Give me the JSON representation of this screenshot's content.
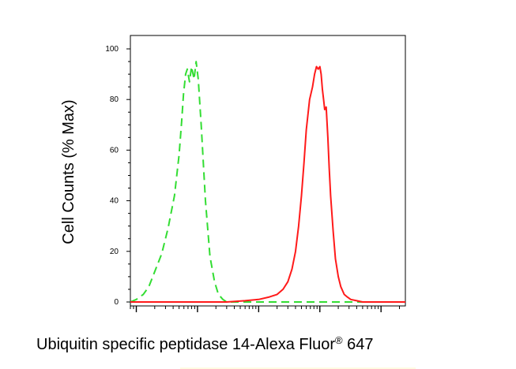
{
  "chart_data": {
    "type": "line",
    "title": "",
    "xlabel": {
      "main": "Ubiquitin specific peptidase 14-Alexa Fluor",
      "superscript": "®",
      "suffix": " 647"
    },
    "ylabel": "Cell Counts (% Max)",
    "ylim": [
      0,
      100
    ],
    "y_ticks": [
      "0",
      "20",
      "40",
      "60",
      "80",
      "100"
    ],
    "x_scale": "log",
    "xlim": [
      0.8,
      25000
    ],
    "x_tick_labels": [],
    "grid": false,
    "legend": "none",
    "series": [
      {
        "style": "dashed",
        "color": "#33dd33",
        "x": [
          0.8,
          1.0,
          1.3,
          1.6,
          2.0,
          2.6,
          3.3,
          4.2,
          5.0,
          5.5,
          5.9,
          6.4,
          6.8,
          7.4,
          8.0,
          8.8,
          9.5,
          10.3,
          11.5,
          13.5,
          16,
          19,
          22,
          26,
          30,
          40,
          60,
          100,
          200,
          500,
          1000,
          2000,
          5000,
          10000,
          25000
        ],
        "y": [
          0,
          1,
          3,
          6,
          12,
          19,
          29,
          42,
          58,
          71,
          82,
          90,
          92,
          87,
          93,
          88,
          95,
          88,
          70,
          40,
          18,
          8,
          3,
          1,
          0,
          0,
          0,
          0,
          0,
          0,
          0,
          0,
          0,
          0,
          0
        ]
      },
      {
        "style": "solid",
        "color": "#ff1a1a",
        "x": [
          0.8,
          10,
          30,
          60,
          100,
          150,
          200,
          250,
          300,
          350,
          400,
          450,
          500,
          550,
          600,
          680,
          760,
          820,
          880,
          940,
          1000,
          1050,
          1100,
          1150,
          1200,
          1270,
          1350,
          1420,
          1500,
          1650,
          1800,
          2000,
          2200,
          2500,
          2800,
          3200,
          4000,
          5000,
          8000,
          15000,
          25000
        ],
        "y": [
          0,
          0,
          0,
          0.5,
          1,
          2,
          3,
          5,
          8,
          13,
          20,
          30,
          42,
          55,
          68,
          80,
          85,
          90,
          93,
          92,
          93,
          90,
          84,
          80,
          76,
          77,
          65,
          53,
          42,
          28,
          17,
          10,
          6,
          3,
          2,
          1,
          0.5,
          0,
          0,
          0,
          0
        ]
      }
    ]
  }
}
